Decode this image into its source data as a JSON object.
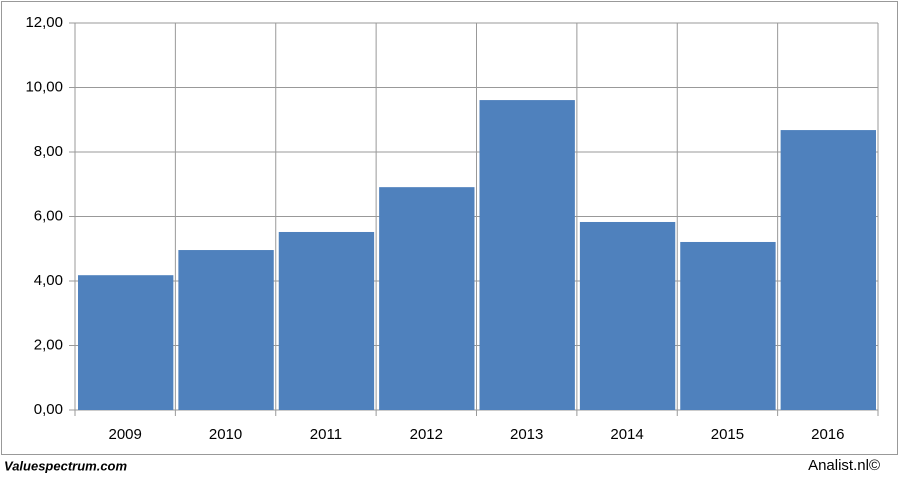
{
  "chart_data": {
    "type": "bar",
    "categories": [
      "2009",
      "2010",
      "2011",
      "2012",
      "2013",
      "2014",
      "2015",
      "2016"
    ],
    "values": [
      4.18,
      4.96,
      5.52,
      6.91,
      9.61,
      5.83,
      5.21,
      8.68
    ],
    "color": "#4f81bd",
    "ylim": [
      0,
      12
    ],
    "yticks": [
      {
        "value": 0,
        "label": "0,00"
      },
      {
        "value": 2,
        "label": "2,00"
      },
      {
        "value": 4,
        "label": "4,00"
      },
      {
        "value": 6,
        "label": "6,00"
      },
      {
        "value": 8,
        "label": "8,00"
      },
      {
        "value": 10,
        "label": "10,00"
      },
      {
        "value": 12,
        "label": "12,00"
      }
    ],
    "grid": true
  },
  "footer": {
    "left": "Valuespectrum.com",
    "right": "Analist.nl©"
  }
}
